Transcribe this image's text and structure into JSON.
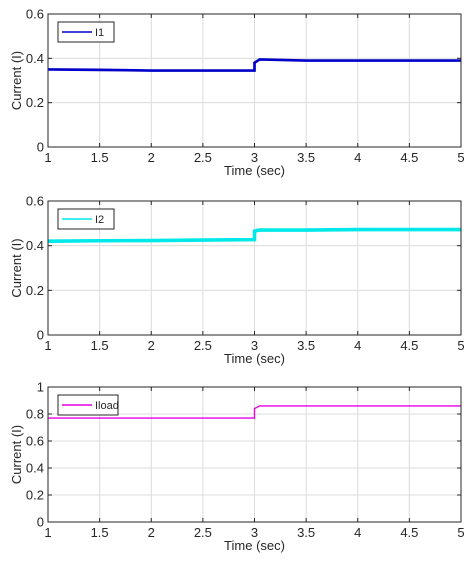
{
  "chart_data": [
    {
      "type": "line",
      "title": "",
      "xlabel": "Time (sec)",
      "ylabel": "Current (I)",
      "xlim": [
        1,
        5
      ],
      "ylim": [
        0,
        0.6
      ],
      "xticks": [
        "1",
        "1.5",
        "2",
        "2.5",
        "3",
        "3.5",
        "4",
        "4.5",
        "5"
      ],
      "yticks": [
        "0",
        "0.2",
        "0.4",
        "0.6"
      ],
      "grid": true,
      "legend_position": "top-left",
      "series": [
        {
          "name": "I1",
          "color": "#0000c8",
          "band": 0.012,
          "points": [
            [
              1,
              0.35
            ],
            [
              1.5,
              0.348
            ],
            [
              2,
              0.345
            ],
            [
              2.5,
              0.345
            ],
            [
              3,
              0.345
            ],
            [
              3,
              0.38
            ],
            [
              3.05,
              0.395
            ],
            [
              3.5,
              0.39
            ],
            [
              4,
              0.39
            ],
            [
              4.5,
              0.39
            ],
            [
              5,
              0.39
            ]
          ]
        }
      ]
    },
    {
      "type": "line",
      "title": "",
      "xlabel": "Time (sec)",
      "ylabel": "Current (I)",
      "xlim": [
        1,
        5
      ],
      "ylim": [
        0,
        0.6
      ],
      "xticks": [
        "1",
        "1.5",
        "2",
        "2.5",
        "3",
        "3.5",
        "4",
        "4.5",
        "5"
      ],
      "yticks": [
        "0",
        "0.2",
        "0.4",
        "0.6"
      ],
      "grid": true,
      "legend_position": "top-left",
      "series": [
        {
          "name": "I2",
          "color": "#00e8e8",
          "band": 0.016,
          "points": [
            [
              1,
              0.42
            ],
            [
              1.5,
              0.422
            ],
            [
              2,
              0.423
            ],
            [
              2.5,
              0.425
            ],
            [
              3,
              0.427
            ],
            [
              3,
              0.465
            ],
            [
              3.05,
              0.47
            ],
            [
              3.5,
              0.47
            ],
            [
              4,
              0.472
            ],
            [
              4.5,
              0.472
            ],
            [
              5,
              0.472
            ]
          ]
        }
      ]
    },
    {
      "type": "line",
      "title": "",
      "xlabel": "Time (sec)",
      "ylabel": "Current (I)",
      "xlim": [
        1,
        5
      ],
      "ylim": [
        0,
        1
      ],
      "xticks": [
        "1",
        "1.5",
        "2",
        "2.5",
        "3",
        "3.5",
        "4",
        "4.5",
        "5"
      ],
      "yticks": [
        "0",
        "0.2",
        "0.4",
        "0.6",
        "0.8",
        "1"
      ],
      "grid": true,
      "legend_position": "top-left",
      "series": [
        {
          "name": "Iload",
          "color": "#e600e6",
          "band": 0.006,
          "points": [
            [
              1,
              0.77
            ],
            [
              1.5,
              0.77
            ],
            [
              2,
              0.77
            ],
            [
              2.5,
              0.77
            ],
            [
              3,
              0.77
            ],
            [
              3,
              0.84
            ],
            [
              3.05,
              0.86
            ],
            [
              3.5,
              0.86
            ],
            [
              4,
              0.86
            ],
            [
              4.5,
              0.86
            ],
            [
              5,
              0.86
            ]
          ]
        }
      ]
    }
  ]
}
